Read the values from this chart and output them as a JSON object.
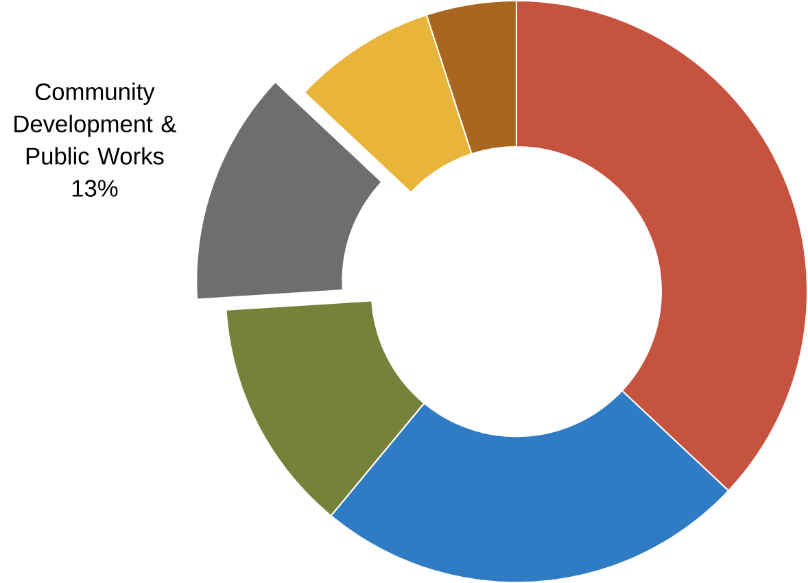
{
  "chart_data": {
    "type": "donut",
    "categories": [
      null,
      null,
      null,
      "Community Development & Public Works",
      null,
      null
    ],
    "values": [
      37,
      24,
      13,
      13,
      8,
      5
    ],
    "colors": [
      "#c6533f",
      "#2f7cc4",
      "#76823a",
      "#6e6e70",
      "#e8b53a",
      "#a8661f"
    ],
    "value_labels": [
      null,
      null,
      null,
      "13%",
      null,
      null
    ]
  }
}
